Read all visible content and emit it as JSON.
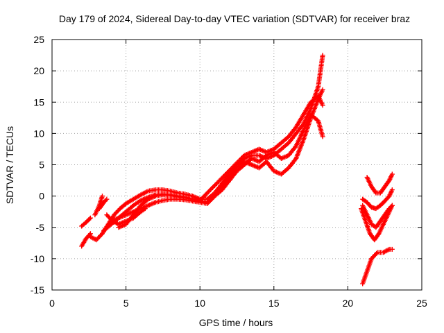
{
  "chart_data": {
    "type": "scatter",
    "title": "Day 179 of 2024, Sidereal Day-to-day VTEC variation (SDTVAR) for receiver braz",
    "xlabel": "GPS time / hours",
    "ylabel": "SDTVAR / TECUs",
    "xlim": [
      0,
      25
    ],
    "ylim": [
      -15,
      25
    ],
    "xticks": [
      "0",
      "5",
      "10",
      "15",
      "20",
      "25"
    ],
    "yticks": [
      "-15",
      "-10",
      "-5",
      "0",
      "5",
      "10",
      "15",
      "20",
      "25"
    ],
    "grid": true,
    "marker": "plus",
    "color": "#ff0000",
    "series": [
      {
        "x": [
          2.0,
          2.3,
          2.6
        ],
        "y": [
          -8.0,
          -6.8,
          -6.0
        ]
      },
      {
        "x": [
          2.0,
          2.3,
          2.6
        ],
        "y": [
          -4.8,
          -4.2,
          -3.5
        ]
      },
      {
        "x": [
          2.9,
          3.2,
          3.4
        ],
        "y": [
          -3.0,
          -1.5,
          0.0
        ]
      },
      {
        "x": [
          3.2,
          3.5,
          3.7
        ],
        "y": [
          -2.0,
          -1.0,
          -0.5
        ]
      },
      {
        "x": [
          2.6,
          3.0,
          3.4,
          3.8,
          4.2,
          4.6,
          5.0,
          5.5,
          6.0,
          6.5,
          7.0,
          7.5,
          8.0,
          8.5,
          9.0,
          9.5,
          10.0,
          10.5,
          11.0,
          11.5,
          12.0,
          12.5,
          13.0,
          13.5,
          14.0,
          14.5,
          15.0,
          15.5,
          16.0,
          16.5,
          17.0,
          17.5,
          18.0,
          18.3
        ],
        "y": [
          -6.5,
          -7.0,
          -6.0,
          -4.5,
          -3.0,
          -2.0,
          -1.2,
          -0.5,
          0.2,
          0.8,
          1.0,
          1.0,
          0.8,
          0.5,
          0.3,
          0.0,
          -0.5,
          -0.5,
          0.5,
          2.0,
          3.5,
          5.0,
          6.0,
          6.5,
          6.5,
          6.0,
          6.5,
          7.5,
          8.5,
          10.0,
          11.5,
          14.0,
          17.5,
          22.5
        ]
      },
      {
        "x": [
          3.5,
          4.0,
          4.5,
          5.0,
          5.5,
          6.0,
          6.5,
          7.0,
          7.5,
          8.0,
          8.5,
          9.0,
          9.5,
          10.0,
          10.5,
          11.0,
          11.5,
          12.0,
          12.5,
          13.0,
          13.5,
          14.0,
          14.5,
          15.0,
          15.5,
          16.0,
          16.5,
          17.0,
          17.5,
          18.0,
          18.3
        ],
        "y": [
          -5.5,
          -4.5,
          -3.5,
          -2.5,
          -1.5,
          -0.7,
          -0.2,
          0.2,
          0.3,
          0.2,
          0.0,
          -0.2,
          -0.5,
          -0.8,
          -1.0,
          0.0,
          1.5,
          3.0,
          4.5,
          5.5,
          5.0,
          4.5,
          5.5,
          4.0,
          3.5,
          4.5,
          6.0,
          9.0,
          12.5,
          15.5,
          17.0
        ]
      },
      {
        "x": [
          4.0,
          4.5,
          5.0,
          5.5,
          6.0,
          6.5,
          7.0,
          7.5,
          8.0,
          8.5,
          9.0,
          9.5,
          10.0,
          10.5,
          11.0,
          11.5,
          12.0,
          12.5,
          13.0,
          13.5,
          14.0,
          14.5,
          15.0,
          15.5,
          16.0,
          16.5,
          17.0,
          17.5,
          18.0,
          18.3
        ],
        "y": [
          -4.0,
          -3.5,
          -3.0,
          -2.5,
          -2.0,
          -1.5,
          -1.0,
          -0.7,
          -0.5,
          -0.5,
          -0.6,
          -0.8,
          -1.0,
          -1.2,
          0.0,
          1.0,
          2.5,
          4.0,
          5.0,
          6.0,
          5.5,
          6.5,
          7.0,
          6.0,
          6.5,
          8.0,
          10.5,
          13.0,
          12.0,
          9.5
        ]
      },
      {
        "x": [
          4.5,
          5.0,
          5.5,
          6.0,
          6.5,
          7.0,
          7.5,
          8.0,
          8.5,
          9.0,
          9.5,
          10.0,
          13.0,
          13.5,
          14.0,
          14.5,
          15.0,
          15.5,
          16.0,
          16.5,
          17.0,
          17.5,
          18.0,
          18.3
        ],
        "y": [
          -5.0,
          -4.5,
          -3.0,
          -1.5,
          -0.5,
          0.0,
          0.2,
          0.1,
          -0.1,
          -0.3,
          -0.5,
          -0.7,
          6.5,
          7.0,
          7.5,
          7.0,
          7.5,
          8.5,
          9.5,
          11.0,
          13.0,
          15.0,
          16.0,
          14.5
        ]
      },
      {
        "x": [
          3.7,
          4.1,
          4.5,
          5.0,
          5.5,
          6.0,
          6.3
        ],
        "y": [
          -3.0,
          -4.0,
          -4.5,
          -4.0,
          -3.5,
          -2.5,
          -2.0
        ]
      },
      {
        "x": [
          21.0,
          21.3,
          21.6,
          22.0,
          22.4,
          22.8,
          23.0
        ],
        "y": [
          -14.0,
          -12.0,
          -10.0,
          -9.0,
          -9.0,
          -8.5,
          -8.5
        ]
      },
      {
        "x": [
          20.9,
          21.2,
          21.5,
          21.8,
          22.1,
          22.4,
          22.7,
          23.0
        ],
        "y": [
          -2.0,
          -4.0,
          -6.0,
          -7.0,
          -6.0,
          -4.5,
          -3.0,
          -1.5
        ]
      },
      {
        "x": [
          21.0,
          21.3,
          21.6,
          21.9,
          22.2,
          22.5,
          22.8,
          23.0
        ],
        "y": [
          -1.5,
          -3.0,
          -4.5,
          -5.0,
          -4.0,
          -3.0,
          -2.0,
          -1.5
        ]
      },
      {
        "x": [
          21.0,
          21.3,
          21.6,
          21.9,
          22.2,
          22.5,
          22.8,
          23.0
        ],
        "y": [
          -0.5,
          -1.0,
          -1.8,
          -2.0,
          -1.5,
          -0.8,
          0.0,
          1.0
        ]
      },
      {
        "x": [
          21.3,
          21.6,
          21.9,
          22.2,
          22.5,
          22.8,
          23.0
        ],
        "y": [
          3.0,
          1.5,
          0.5,
          0.5,
          1.5,
          2.5,
          3.5
        ]
      }
    ]
  }
}
